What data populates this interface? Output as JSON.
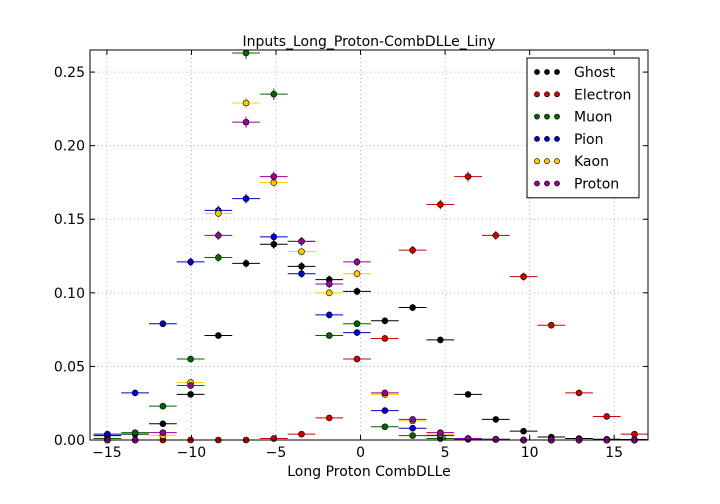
{
  "chart_data": {
    "type": "scatter",
    "title": "Inputs_Long_Proton-CombDLLe_Liny",
    "xlabel": "Long Proton CombDLLe",
    "ylabel": "",
    "xlim": [
      -16,
      17
    ],
    "ylim": [
      0,
      0.265
    ],
    "grid": true,
    "legend_position": "top-right",
    "x_ticks": [
      -15,
      -10,
      -5,
      0,
      5,
      10,
      15
    ],
    "x_tick_labels": [
      "−15",
      "−10",
      "−5",
      "0",
      "5",
      "10",
      "15"
    ],
    "y_ticks": [
      0.0,
      0.05,
      0.1,
      0.15,
      0.2,
      0.25
    ],
    "y_tick_labels": [
      "0.00",
      "0.05",
      "0.10",
      "0.15",
      "0.20",
      "0.25"
    ],
    "x_halfwidth": 0.82,
    "series": [
      {
        "name": "Ghost",
        "color": "#000000",
        "x": [
          -14.97,
          -13.33,
          -11.69,
          -10.05,
          -8.41,
          -6.77,
          -5.13,
          -3.49,
          -1.85,
          -0.21,
          1.44,
          3.08,
          4.72,
          6.36,
          8.0,
          9.64,
          11.28,
          12.92,
          14.56,
          16.2
        ],
        "y": [
          0.003,
          0.004,
          0.011,
          0.031,
          0.071,
          0.12,
          0.133,
          0.118,
          0.109,
          0.101,
          0.081,
          0.09,
          0.068,
          0.031,
          0.014,
          0.006,
          0.002,
          0.001,
          0.0005,
          0.0003
        ]
      },
      {
        "name": "Electron",
        "color": "#cc0000",
        "x": [
          -14.97,
          -13.33,
          -11.69,
          -10.05,
          -8.41,
          -6.77,
          -5.13,
          -3.49,
          -1.85,
          -0.21,
          1.44,
          3.08,
          4.72,
          6.36,
          8.0,
          9.64,
          11.28,
          12.92,
          14.56,
          16.2
        ],
        "y": [
          0.0,
          0.0,
          0.0,
          0.0,
          0.0,
          0.0,
          0.001,
          0.004,
          0.015,
          0.055,
          0.069,
          0.129,
          0.16,
          0.179,
          0.139,
          0.111,
          0.078,
          0.032,
          0.016,
          0.004
        ]
      },
      {
        "name": "Muon",
        "color": "#006600",
        "x": [
          -14.97,
          -13.33,
          -11.69,
          -10.05,
          -8.41,
          -6.77,
          -5.13,
          -3.49,
          -1.85,
          -0.21,
          1.44,
          3.08,
          4.72,
          6.36,
          8.0,
          9.64,
          11.28,
          12.92,
          14.56,
          16.2
        ],
        "y": [
          0.001,
          0.005,
          0.023,
          0.055,
          0.124,
          0.263,
          0.235,
          0.135,
          0.071,
          0.079,
          0.009,
          0.003,
          0.001,
          0.0005,
          0.0003,
          0.0,
          0.0,
          0.0,
          0.0,
          0.0
        ]
      },
      {
        "name": "Pion",
        "color": "#0000cc",
        "x": [
          -14.97,
          -13.33,
          -11.69,
          -10.05,
          -8.41,
          -6.77,
          -5.13,
          -3.49,
          -1.85,
          -0.21,
          1.44,
          3.08,
          4.72,
          6.36,
          8.0,
          9.64,
          11.28,
          12.92,
          14.56,
          16.2
        ],
        "y": [
          0.004,
          0.032,
          0.079,
          0.121,
          0.156,
          0.164,
          0.138,
          0.113,
          0.085,
          0.073,
          0.02,
          0.008,
          0.003,
          0.001,
          0.0005,
          0.0,
          0.0,
          0.0,
          0.0,
          0.0
        ]
      },
      {
        "name": "Kaon",
        "color": "#ffcc00",
        "x": [
          -14.97,
          -13.33,
          -11.69,
          -10.05,
          -8.41,
          -6.77,
          -5.13,
          -3.49,
          -1.85,
          -0.21,
          1.44,
          3.08,
          4.72,
          6.36,
          8.0,
          9.64,
          11.28,
          12.92,
          14.56,
          16.2
        ],
        "y": [
          0.0,
          0.0,
          0.003,
          0.039,
          0.154,
          0.229,
          0.175,
          0.128,
          0.1,
          0.113,
          0.031,
          0.013,
          0.004,
          0.001,
          0.0005,
          0.0,
          0.0,
          0.0,
          0.0,
          0.0
        ]
      },
      {
        "name": "Proton",
        "color": "#990099",
        "x": [
          -14.97,
          -13.33,
          -11.69,
          -10.05,
          -8.41,
          -6.77,
          -5.13,
          -3.49,
          -1.85,
          -0.21,
          1.44,
          3.08,
          4.72,
          6.36,
          8.0,
          9.64,
          11.28,
          12.92,
          14.56,
          16.2
        ],
        "y": [
          0.0,
          0.0,
          0.005,
          0.037,
          0.139,
          0.216,
          0.179,
          0.135,
          0.106,
          0.121,
          0.032,
          0.014,
          0.005,
          0.001,
          0.0005,
          0.0,
          0.0,
          0.0,
          0.0,
          0.0
        ]
      }
    ]
  }
}
